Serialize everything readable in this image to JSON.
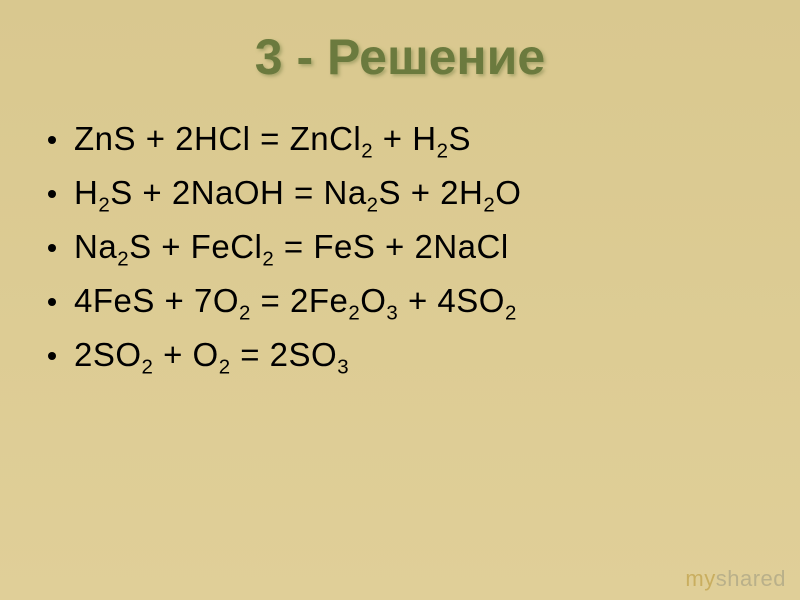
{
  "title": "3 - Решение",
  "title_color": "#6b7a3e",
  "title_fontsize": 50,
  "background_gradient": {
    "top": "#d9c88f",
    "bottom": "#e0cf98"
  },
  "body_fontsize": 33,
  "body_color": "#000000",
  "bullet_color": "#000000",
  "equations": [
    [
      {
        "t": "ZnS + 2HCl = ZnCl"
      },
      {
        "sub": "2"
      },
      {
        "t": " + H"
      },
      {
        "sub": "2"
      },
      {
        "t": "S"
      }
    ],
    [
      {
        "t": "H"
      },
      {
        "sub": "2"
      },
      {
        "t": "S + 2NaOH = Na"
      },
      {
        "sub": "2"
      },
      {
        "t": "S + 2H"
      },
      {
        "sub": "2"
      },
      {
        "t": "O"
      }
    ],
    [
      {
        "t": "Na"
      },
      {
        "sub": "2"
      },
      {
        "t": "S + FeCl"
      },
      {
        "sub": "2"
      },
      {
        "t": " = FeS + 2NaCl"
      }
    ],
    [
      {
        "t": "4FeS + 7O"
      },
      {
        "sub": "2"
      },
      {
        "t": " = 2Fe"
      },
      {
        "sub": "2"
      },
      {
        "t": "O"
      },
      {
        "sub": "3"
      },
      {
        "t": " + 4SO"
      },
      {
        "sub": "2"
      }
    ],
    [
      {
        "t": "2SO"
      },
      {
        "sub": "2"
      },
      {
        "t": " + O"
      },
      {
        "sub": "2"
      },
      {
        "t": " = 2SO"
      },
      {
        "sub": "3"
      }
    ]
  ],
  "watermark": {
    "prefix": "my",
    "rest": "shared",
    "prefix_color": "#c9ae5f",
    "rest_color": "#b9b08a",
    "fontsize": 22
  }
}
